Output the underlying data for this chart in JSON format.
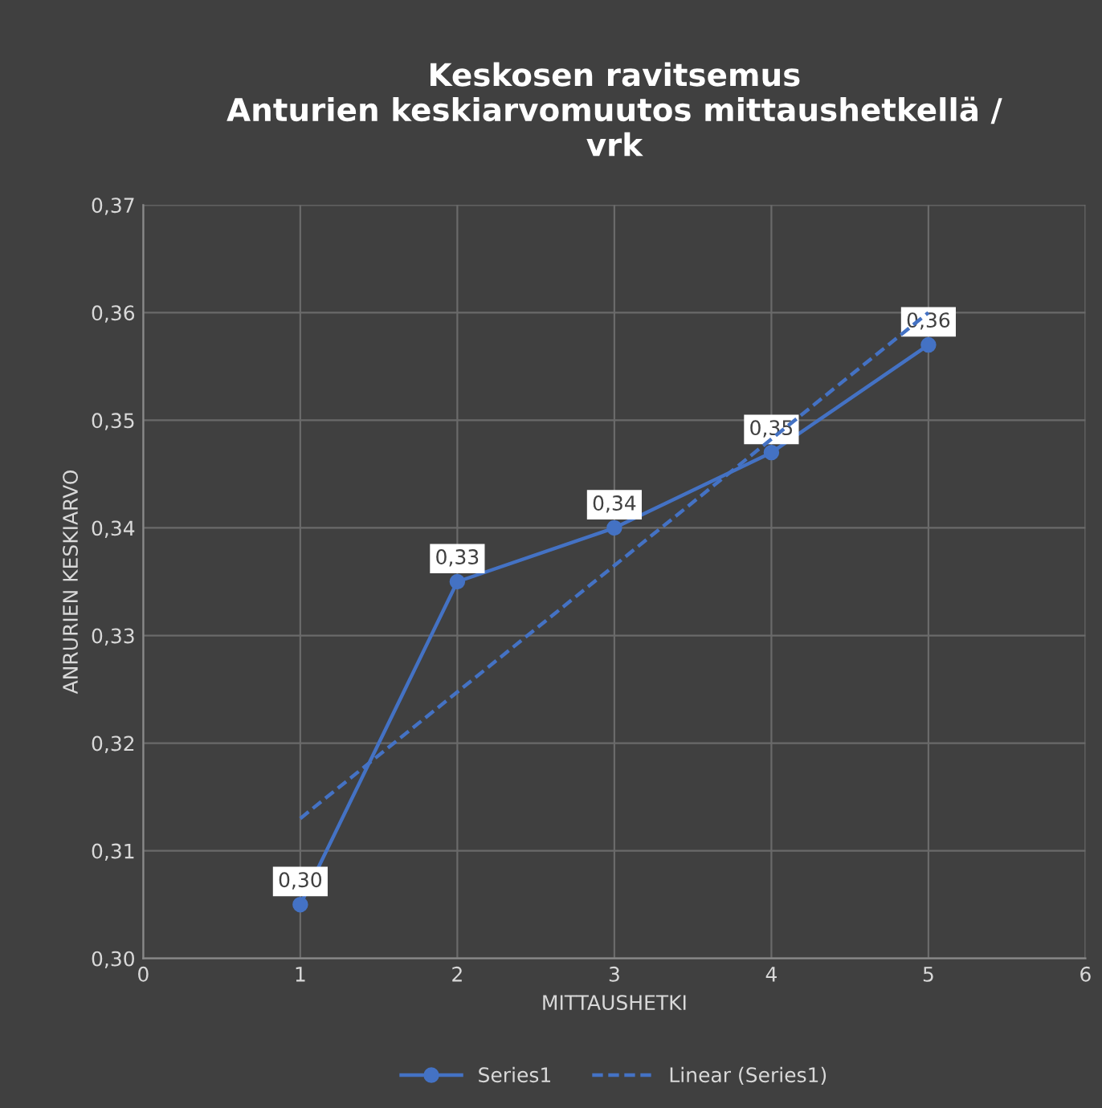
{
  "chart_data": {
    "type": "line",
    "title": "Keskosen ravitsemus\nAnturien keskiarvomuutos mittaushetkellä /\nvrk",
    "xlabel": "MITTAUSHETKI",
    "ylabel": "ANRURIEN KESKIARVO",
    "x": [
      1,
      2,
      3,
      4,
      5
    ],
    "series": [
      {
        "name": "Series1",
        "color": "#4472c4",
        "values": [
          0.305,
          0.335,
          0.34,
          0.347,
          0.357
        ],
        "value_labels": [
          "0,30",
          "0,33",
          "0,34",
          "0,35",
          "0,36"
        ],
        "marker": "circle",
        "line_style": "solid"
      },
      {
        "name": "Linear (Series1)",
        "color": "#4472c4",
        "x": [
          1,
          5
        ],
        "values": [
          0.313,
          0.36
        ],
        "marker": "none",
        "line_style": "dashed"
      }
    ],
    "xlim": [
      0,
      6
    ],
    "xticks": [
      0,
      1,
      2,
      3,
      4,
      5,
      6
    ],
    "ylim": [
      0.3,
      0.37
    ],
    "yticks": [
      {
        "value": 0.3,
        "label": "0,30"
      },
      {
        "value": 0.31,
        "label": "0,31"
      },
      {
        "value": 0.32,
        "label": "0,32"
      },
      {
        "value": 0.33,
        "label": "0,33"
      },
      {
        "value": 0.34,
        "label": "0,34"
      },
      {
        "value": 0.35,
        "label": "0,35"
      },
      {
        "value": 0.36,
        "label": "0,36"
      },
      {
        "value": 0.37,
        "label": "0,37"
      }
    ],
    "grid": true,
    "legend": "bottom"
  }
}
